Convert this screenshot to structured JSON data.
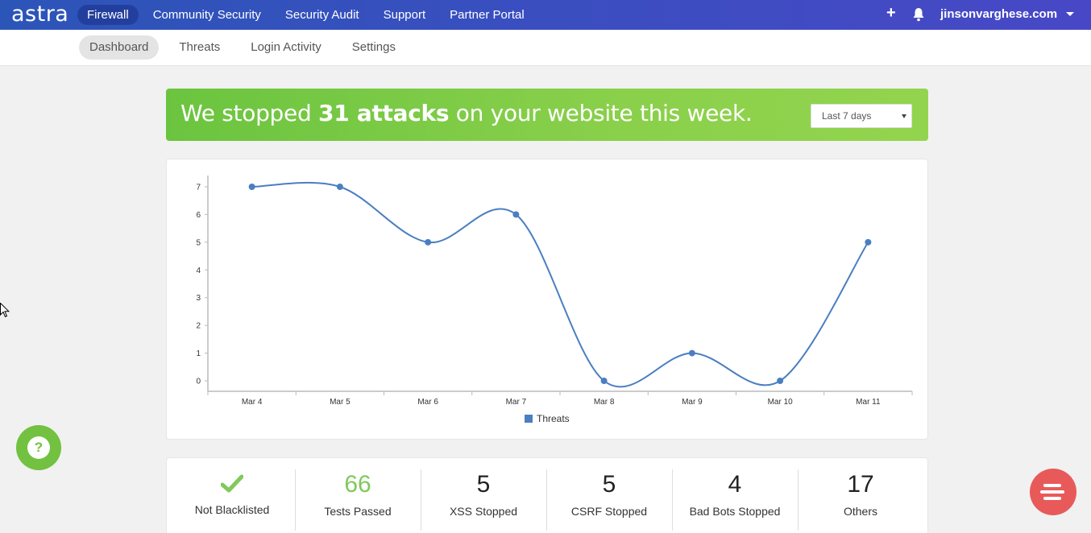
{
  "brand": {
    "logo": "astra"
  },
  "topnav": {
    "items": [
      {
        "label": "Firewall",
        "active": true
      },
      {
        "label": "Community Security"
      },
      {
        "label": "Security Audit"
      },
      {
        "label": "Support"
      },
      {
        "label": "Partner Portal"
      }
    ],
    "plus_icon": "plus-icon",
    "bell_icon": "bell-icon",
    "user": "jinsonvarghese.com"
  },
  "subnav": {
    "items": [
      {
        "label": "Dashboard",
        "active": true
      },
      {
        "label": "Threats"
      },
      {
        "label": "Login Activity"
      },
      {
        "label": "Settings"
      }
    ]
  },
  "banner": {
    "prefix": "We stopped ",
    "highlight": "31 attacks",
    "suffix": " on your website this week.",
    "range_selected": "Last 7 days"
  },
  "chart_data": {
    "type": "line",
    "categories": [
      "Mar 4",
      "Mar 5",
      "Mar 6",
      "Mar 7",
      "Mar 8",
      "Mar 9",
      "Mar 10",
      "Mar 11"
    ],
    "series": [
      {
        "name": "Threats",
        "values": [
          7,
          7,
          5,
          6,
          0,
          1,
          0,
          5
        ],
        "color": "#4a7fc1"
      }
    ],
    "yticks": [
      0,
      1,
      2,
      3,
      4,
      5,
      6,
      7
    ],
    "ylim": [
      0,
      7
    ],
    "legend": "bottom-center",
    "grid": false
  },
  "stats": [
    {
      "value": "",
      "icon": "check-icon",
      "label": "Not Blacklisted"
    },
    {
      "value": "66",
      "label": "Tests Passed",
      "highlight": true
    },
    {
      "value": "5",
      "label": "XSS Stopped"
    },
    {
      "value": "5",
      "label": "CSRF Stopped"
    },
    {
      "value": "4",
      "label": "Bad Bots Stopped"
    },
    {
      "value": "17",
      "label": "Others"
    }
  ],
  "colors": {
    "topbar": "#3a4ec0",
    "banner": "#7ecb47",
    "accent_green": "#80c95a",
    "line": "#4a7fc1",
    "chat": "#e85a5a"
  },
  "fabs": {
    "help_icon": "question-icon",
    "chat_icon": "chat-icon",
    "help_glyph": "?"
  }
}
